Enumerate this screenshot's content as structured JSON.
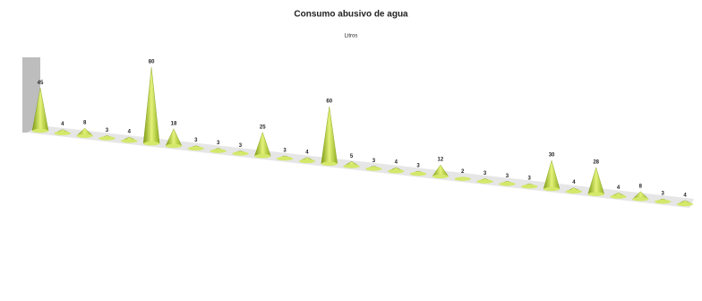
{
  "chart_data": {
    "type": "cone",
    "title": "Consumo abusivo de agua",
    "subtitle": "Litros",
    "categories": [
      null,
      null,
      null,
      null,
      null,
      null,
      null,
      null,
      null,
      null,
      null,
      null,
      null,
      null,
      null,
      null,
      null,
      null,
      null,
      null,
      null,
      null,
      null,
      null,
      null,
      null,
      null,
      null,
      null,
      null
    ],
    "values": [
      45,
      4,
      8,
      3,
      4,
      80,
      18,
      3,
      3,
      3,
      25,
      3,
      4,
      60,
      5,
      3,
      4,
      3,
      12,
      2,
      3,
      3,
      3,
      30,
      4,
      28,
      4,
      8,
      3,
      4
    ],
    "color": "#c9e04c"
  }
}
